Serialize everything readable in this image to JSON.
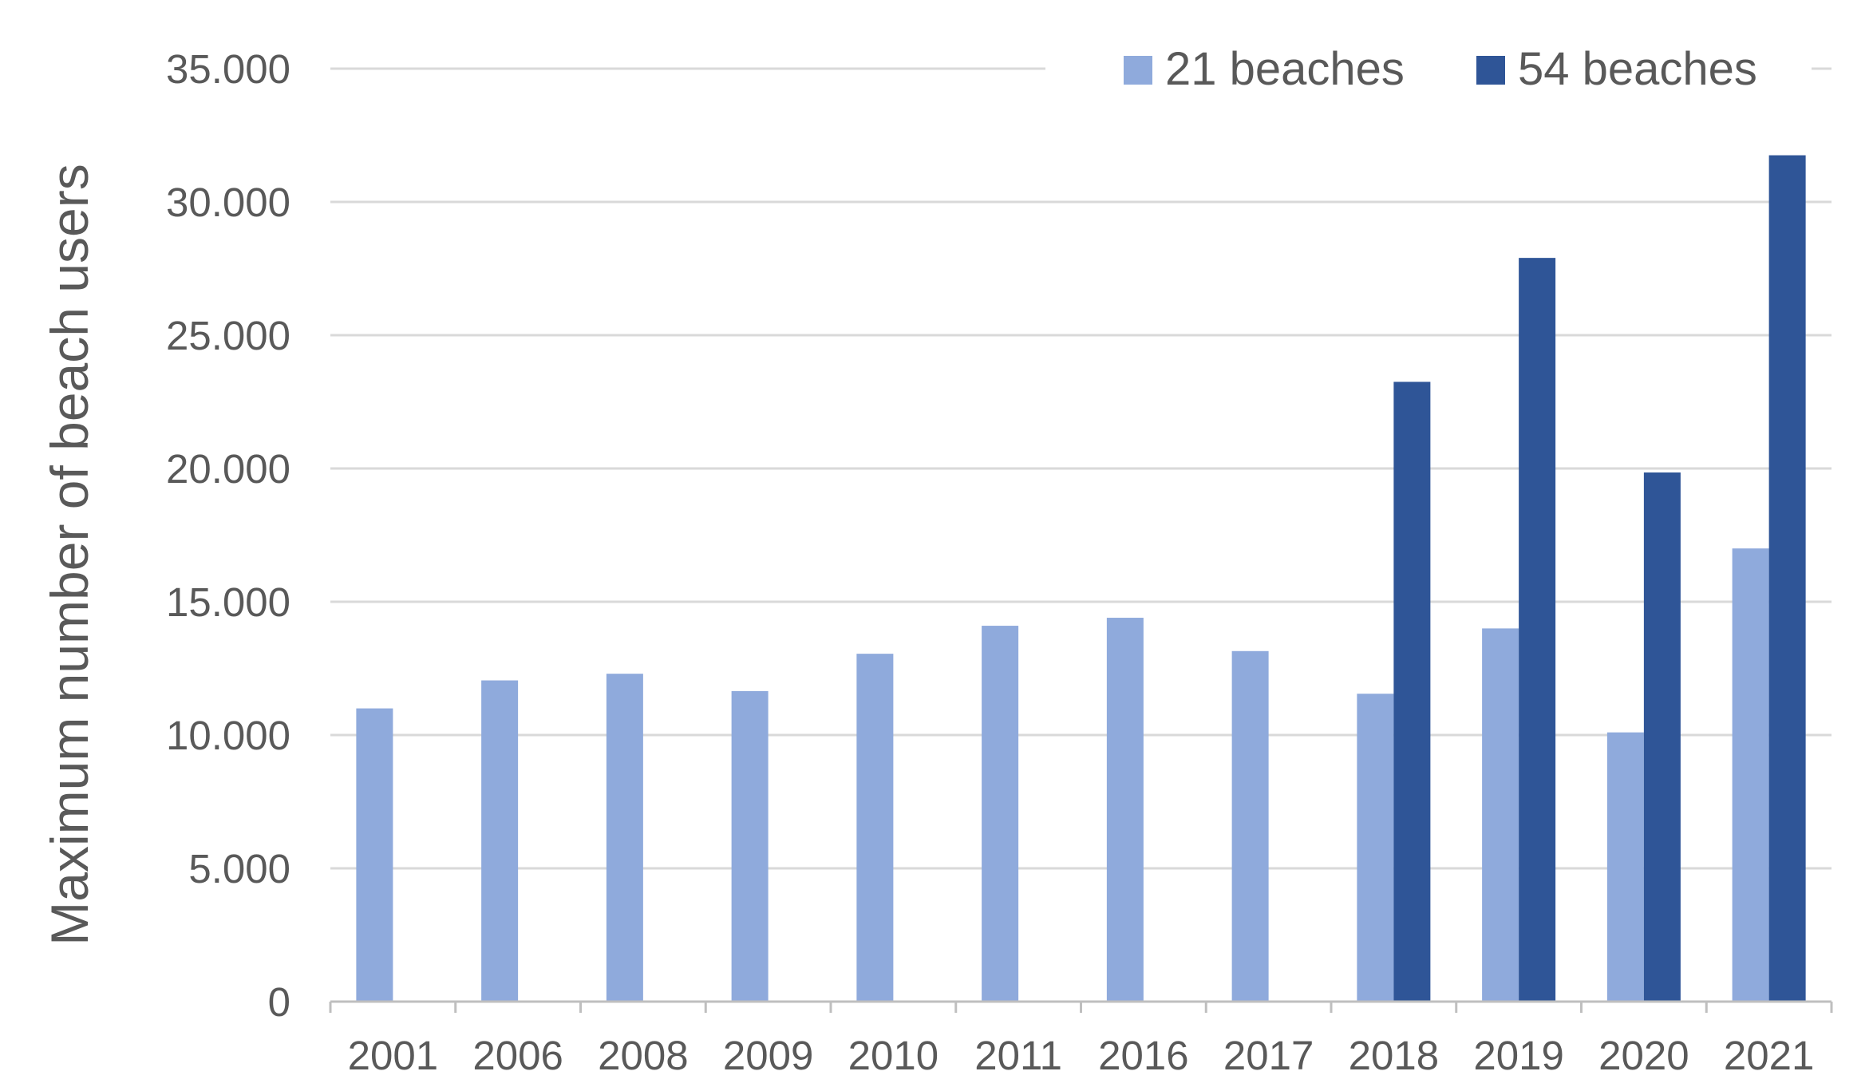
{
  "chart_data": {
    "type": "bar",
    "title": "",
    "xlabel": "",
    "ylabel": "Maximum number of beach users",
    "categories": [
      "2001",
      "2006",
      "2008",
      "2009",
      "2010",
      "2011",
      "2016",
      "2017",
      "2018",
      "2019",
      "2020",
      "2021"
    ],
    "series": [
      {
        "name": "21 beaches",
        "color": "#8faadc",
        "values": [
          11000,
          12050,
          12300,
          11650,
          13050,
          14100,
          14400,
          13150,
          11550,
          14000,
          10100,
          17000
        ]
      },
      {
        "name": "54 beaches",
        "color": "#2f5597",
        "values": [
          null,
          null,
          null,
          null,
          null,
          null,
          null,
          null,
          23250,
          27900,
          19850,
          31750
        ]
      }
    ],
    "ylim": [
      0,
      35000
    ],
    "yticks": [
      "0",
      "5.000",
      "10.000",
      "15.000",
      "20.000",
      "25.000",
      "30.000",
      "35.000"
    ],
    "grid": true,
    "legend": "top-right",
    "colors": {
      "gridline": "#d9d9d9",
      "axis": "#bfbfbf",
      "text": "#595959"
    }
  }
}
